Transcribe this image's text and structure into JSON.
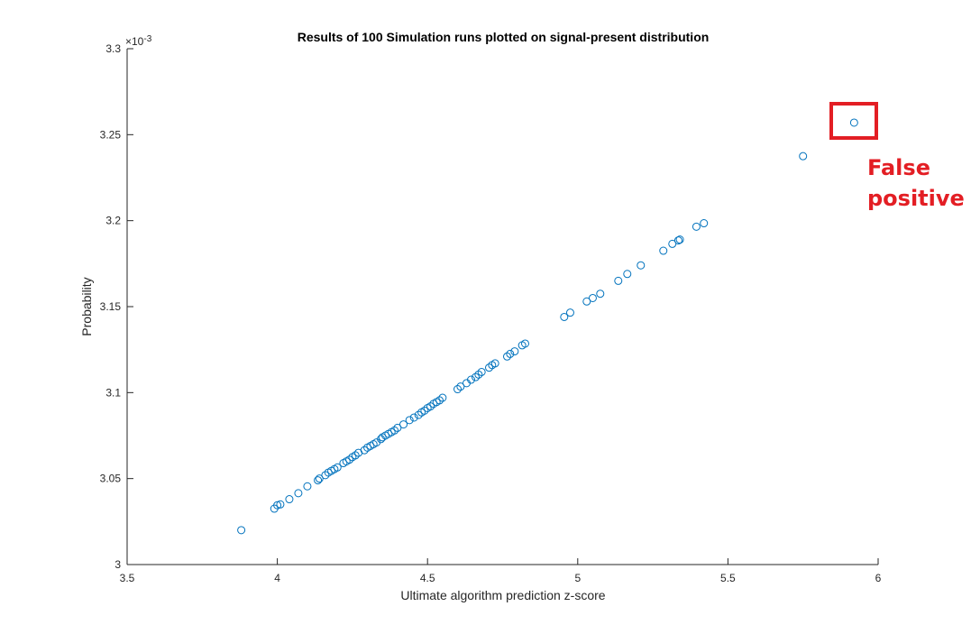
{
  "chart_data": {
    "type": "scatter",
    "title": "Results of 100 Simulation runs plotted on signal-present distribution",
    "xlabel": "Ultimate algorithm prediction z-score",
    "ylabel": "Probability",
    "xlim": [
      3.5,
      6
    ],
    "ylim": [
      3.0,
      3.3
    ],
    "y_exponent_label": "×10",
    "y_exponent_power": "-3",
    "x_ticks": [
      "3.5",
      "4",
      "4.5",
      "5",
      "5.5",
      "6"
    ],
    "y_ticks": [
      "3",
      "3.05",
      "3.1",
      "3.15",
      "3.2",
      "3.25",
      "3.3"
    ],
    "grid": false,
    "marker_color": "#0072bd",
    "x": [
      3.88,
      3.99,
      4.0,
      4.01,
      4.04,
      4.07,
      4.1,
      4.135,
      4.14,
      4.16,
      4.17,
      4.18,
      4.19,
      4.2,
      4.22,
      4.23,
      4.24,
      4.25,
      4.26,
      4.27,
      4.29,
      4.3,
      4.31,
      4.32,
      4.33,
      4.345,
      4.35,
      4.36,
      4.37,
      4.38,
      4.39,
      4.4,
      4.42,
      4.44,
      4.455,
      4.47,
      4.48,
      4.49,
      4.5,
      4.51,
      4.52,
      4.53,
      4.54,
      4.55,
      4.6,
      4.61,
      4.63,
      4.645,
      4.66,
      4.67,
      4.68,
      4.705,
      4.715,
      4.725,
      4.765,
      4.775,
      4.79,
      4.815,
      4.825,
      4.955,
      4.975,
      5.03,
      5.05,
      5.075,
      5.135,
      5.165,
      5.21,
      5.285,
      5.315,
      5.335,
      5.34,
      5.395,
      5.42,
      5.75,
      5.92
    ],
    "y": [
      3.02,
      3.0325,
      3.0345,
      3.035,
      3.038,
      3.0415,
      3.0455,
      3.049,
      3.05,
      3.052,
      3.0535,
      3.0545,
      3.0555,
      3.0565,
      3.059,
      3.06,
      3.061,
      3.0625,
      3.0635,
      3.065,
      3.0665,
      3.068,
      3.069,
      3.07,
      3.071,
      3.073,
      3.074,
      3.075,
      3.076,
      3.077,
      3.078,
      3.0795,
      3.0815,
      3.084,
      3.0855,
      3.087,
      3.0885,
      3.0895,
      3.091,
      3.092,
      3.0935,
      3.0945,
      3.0955,
      3.097,
      3.102,
      3.1035,
      3.1055,
      3.1075,
      3.109,
      3.1105,
      3.112,
      3.1145,
      3.116,
      3.117,
      3.121,
      3.1225,
      3.124,
      3.1275,
      3.1285,
      3.144,
      3.1465,
      3.153,
      3.155,
      3.1575,
      3.165,
      3.169,
      3.174,
      3.1825,
      3.1865,
      3.1885,
      3.189,
      3.1965,
      3.1985,
      3.2375,
      3.257
    ]
  },
  "annotation": {
    "lines": [
      "False",
      "positive"
    ],
    "color": "#e31e24"
  }
}
